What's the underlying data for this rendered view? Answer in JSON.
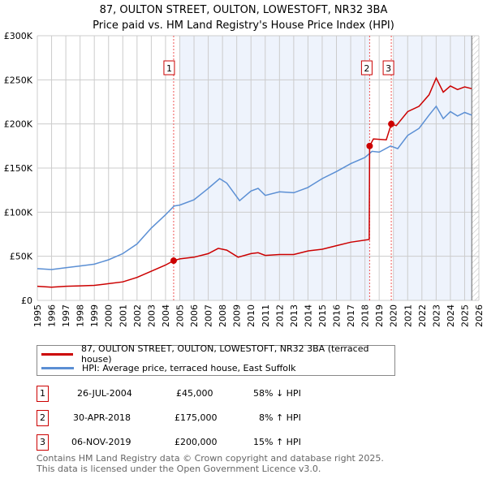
{
  "chart_data": {
    "type": "line",
    "title": "87, OULTON STREET, OULTON, LOWESTOFT, NR32 3BA",
    "subtitle": "Price paid vs. HM Land Registry's House Price Index (HPI)",
    "xlim": [
      1995,
      2026
    ],
    "ylim": [
      0,
      300000
    ],
    "x_ticks": [
      "1995",
      "1996",
      "1997",
      "1998",
      "1999",
      "2000",
      "2001",
      "2002",
      "2003",
      "2004",
      "2005",
      "2006",
      "2007",
      "2008",
      "2009",
      "2010",
      "2011",
      "2012",
      "2013",
      "2014",
      "2015",
      "2016",
      "2017",
      "2018",
      "2019",
      "2020",
      "2021",
      "2022",
      "2023",
      "2024",
      "2025",
      "2026"
    ],
    "y_ticks": [
      {
        "v": 0,
        "label": "£0"
      },
      {
        "v": 50000,
        "label": "£50K"
      },
      {
        "v": 100000,
        "label": "£100K"
      },
      {
        "v": 150000,
        "label": "£150K"
      },
      {
        "v": 200000,
        "label": "£200K"
      },
      {
        "v": 250000,
        "label": "£250K"
      },
      {
        "v": 300000,
        "label": "£300K"
      }
    ],
    "series": [
      {
        "name": "87, OULTON STREET, OULTON, LOWESTOFT, NR32 3BA (terraced house)",
        "color": "#cc0000",
        "x": [
          1995,
          1996,
          1997,
          1998,
          1999,
          2000,
          2001,
          2002,
          2003,
          2004,
          2004.57,
          2005,
          2006,
          2007,
          2007.7,
          2008.3,
          2009.1,
          2010,
          2010.5,
          2011,
          2012,
          2013,
          2014,
          2015,
          2016,
          2017,
          2018.3,
          2018.33,
          2018.6,
          2019.5,
          2019.85,
          2020.2,
          2021,
          2021.8,
          2022.5,
          2023,
          2023.5,
          2024,
          2024.5,
          2025,
          2025.5
        ],
        "y": [
          16000,
          15000,
          16000,
          16500,
          17000,
          19000,
          21000,
          26000,
          33000,
          40000,
          45000,
          47000,
          49000,
          53000,
          59000,
          57000,
          49000,
          53000,
          54000,
          51000,
          52000,
          52000,
          56000,
          58000,
          62000,
          66000,
          69000,
          175000,
          183000,
          182000,
          200000,
          198000,
          214000,
          220000,
          233000,
          252000,
          236000,
          243000,
          239000,
          242000,
          240000
        ]
      },
      {
        "name": "HPI: Average price, terraced house, East Suffolk",
        "color": "#5b8fd4",
        "x": [
          1995,
          1996,
          1997,
          1998,
          1999,
          2000,
          2001,
          2002,
          2003,
          2004,
          2004.6,
          2005,
          2006,
          2007,
          2007.8,
          2008.3,
          2009.2,
          2010,
          2010.5,
          2011,
          2012,
          2013,
          2014,
          2015,
          2016,
          2017,
          2018,
          2018.5,
          2019,
          2019.8,
          2020.3,
          2021,
          2021.8,
          2022.5,
          2023,
          2023.5,
          2024,
          2024.5,
          2025,
          2025.5
        ],
        "y": [
          36000,
          35000,
          37000,
          39000,
          41000,
          46000,
          53000,
          64000,
          82000,
          97000,
          107000,
          108000,
          114000,
          127000,
          138000,
          133000,
          113000,
          124000,
          127000,
          119000,
          123000,
          122000,
          128000,
          138000,
          146000,
          155000,
          162000,
          169000,
          168000,
          175000,
          172000,
          187000,
          195000,
          210000,
          220000,
          206000,
          214000,
          209000,
          213000,
          210000
        ]
      }
    ],
    "sales": [
      {
        "label": "1",
        "date": "26-JUL-2004",
        "x": 2004.57,
        "price": "£45,000",
        "value": 45000,
        "hpi": "58% ↓ HPI"
      },
      {
        "label": "2",
        "date": "30-APR-2018",
        "x": 2018.33,
        "price": "£175,000",
        "value": 175000,
        "hpi": "8% ↑ HPI"
      },
      {
        "label": "3",
        "date": "06-NOV-2019",
        "x": 2019.85,
        "price": "£200,000",
        "value": 200000,
        "hpi": "15% ↑ HPI"
      }
    ],
    "shaded_ranges": [
      [
        2005,
        2018.33
      ],
      [
        2020,
        2025.5
      ]
    ],
    "hatched_from": 2025.5,
    "legend_position": "below"
  },
  "footer": {
    "line1": "Contains HM Land Registry data © Crown copyright and database right 2025.",
    "line2": "This data is licensed under the Open Government Licence v3.0."
  }
}
